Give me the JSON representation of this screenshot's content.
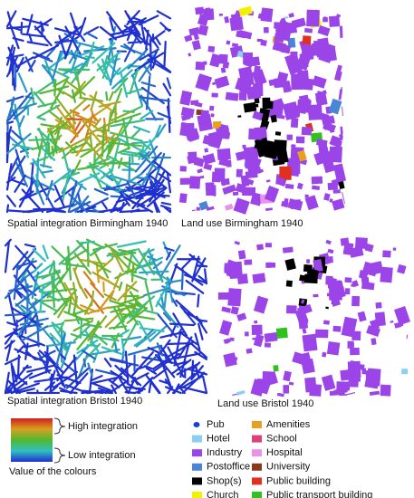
{
  "panels": [
    {
      "caption": "Spatial integration Birmingham 1940"
    },
    {
      "caption": "Land use Birmingham 1940"
    },
    {
      "caption": "Spatial integration Bristol 1940"
    },
    {
      "caption": "Land use Bristol 1940"
    }
  ],
  "integration_legend": {
    "high": "High integration",
    "low": "Low integration",
    "caption": "Value of the colours"
  },
  "land_use_legend": {
    "items": [
      {
        "label": "Pub",
        "color": "#1a3fd8"
      },
      {
        "label": "Hotel",
        "color": "#8ccff2"
      },
      {
        "label": "Industry",
        "color": "#9b45e8"
      },
      {
        "label": "Postoffice",
        "color": "#4a86d6"
      },
      {
        "label": "Shop(s)",
        "color": "#000000"
      },
      {
        "label": "Church",
        "color": "#f2f200"
      },
      {
        "label": "Amenities",
        "color": "#e8a01e"
      },
      {
        "label": "School",
        "color": "#e0407a"
      },
      {
        "label": "Hospital",
        "color": "#ea92ea"
      },
      {
        "label": "University",
        "color": "#8a3a1a"
      },
      {
        "label": "Public building",
        "color": "#e03020"
      },
      {
        "label": "Public transport building",
        "color": "#30c020"
      }
    ]
  }
}
